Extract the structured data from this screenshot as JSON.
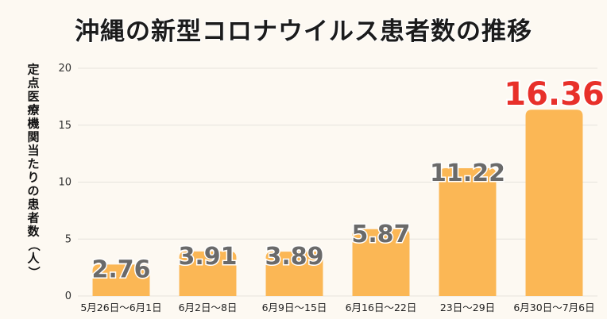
{
  "chart_data": {
    "type": "bar",
    "title": "沖縄の新型コロナウイルス患者数の推移",
    "ylabel": "定点医療機関当たりの患者数（人）",
    "xlabel": "",
    "categories": [
      "5月26日～6月1日",
      "6月2日～8日",
      "6月9日～15日",
      "6月16日～22日",
      "23日～29日",
      "6月30日～7月6日"
    ],
    "values": [
      2.76,
      3.91,
      3.89,
      5.87,
      11.22,
      16.36
    ],
    "value_labels": [
      "2.76",
      "3.91",
      "3.89",
      "5.87",
      "11.22",
      "16.36"
    ],
    "ylim": [
      0,
      20
    ],
    "yticks": [
      0,
      5,
      10,
      15,
      20
    ],
    "grid": true,
    "bar_color": "#fbb755",
    "label_color": "#6a6a6a",
    "highlight_color": "#e8302a",
    "highlight_index": 5
  }
}
